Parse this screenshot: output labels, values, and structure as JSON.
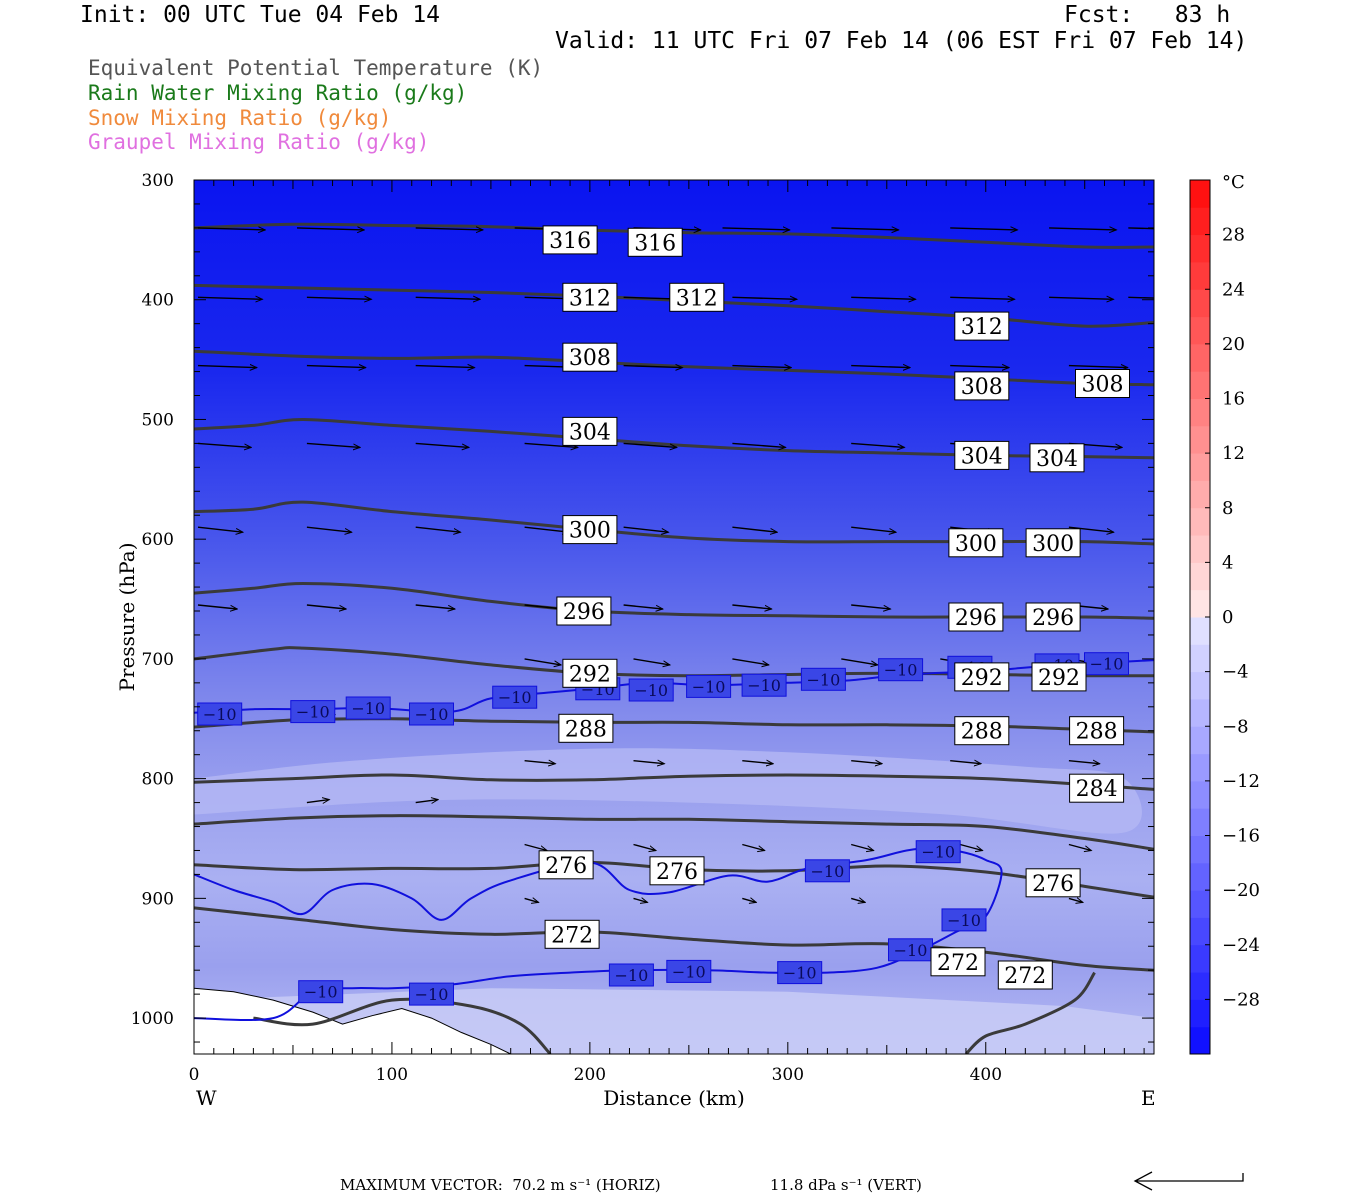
{
  "header": {
    "init": "Init: 00 UTC Tue 04 Feb 14",
    "fcst": "Fcst:   83 h",
    "valid": "Valid: 11 UTC Fri 07 Feb 14 (06 EST Fri 07 Feb 14)"
  },
  "fields": [
    {
      "label": "Equivalent Potential Temperature (K)",
      "color": "#555555"
    },
    {
      "label": "Rain Water Mixing Ratio (g/kg)",
      "color": "#1a7a1a"
    },
    {
      "label": "Snow Mixing Ratio (g/kg)",
      "color": "#f08a3c"
    },
    {
      "label": "Graupel Mixing Ratio (g/kg)",
      "color": "#e070e0"
    }
  ],
  "chart_data": {
    "type": "cross-section",
    "xlabel": "Distance (km)",
    "ylabel": "Pressure (hPa)",
    "xlim": [
      0,
      485
    ],
    "ylim": [
      300,
      1030
    ],
    "x_ticks": [
      0,
      100,
      200,
      300,
      400
    ],
    "y_ticks": [
      300,
      400,
      500,
      600,
      700,
      800,
      900,
      1000
    ],
    "west_label": "W",
    "east_label": "E",
    "colorbar": {
      "unit": "°C",
      "tick_labels": [
        "28",
        "24",
        "20",
        "16",
        "12",
        "8",
        "4",
        "0",
        "−4",
        "−8",
        "−12",
        "−16",
        "−20",
        "−24",
        "−28"
      ],
      "tick_values": [
        28,
        24,
        20,
        16,
        12,
        8,
        4,
        0,
        -4,
        -8,
        -12,
        -16,
        -20,
        -24,
        -28
      ],
      "range": [
        -32,
        32
      ],
      "step": 2
    },
    "theta_e_lines": [
      {
        "x": [
          0,
          50,
          100,
          150,
          200,
          250,
          300,
          350,
          400,
          450,
          485
        ],
        "p": [
          340,
          337,
          338,
          339,
          342,
          344,
          345,
          348,
          352,
          356,
          356
        ]
      },
      {
        "x": [
          0,
          50,
          100,
          150,
          200,
          250,
          300,
          350,
          400,
          450,
          485
        ],
        "p": [
          388,
          390,
          392,
          394,
          397,
          401,
          405,
          410,
          415,
          422,
          419
        ]
      },
      {
        "x": [
          0,
          50,
          100,
          150,
          200,
          250,
          300,
          350,
          400,
          450,
          485
        ],
        "p": [
          443,
          447,
          449,
          448,
          452,
          456,
          459,
          462,
          466,
          470,
          471
        ]
      },
      {
        "x": [
          0,
          30,
          55,
          100,
          150,
          200,
          250,
          300,
          350,
          400,
          450,
          485
        ],
        "p": [
          508,
          505,
          500,
          505,
          510,
          516,
          522,
          526,
          528,
          530,
          531,
          532
        ]
      },
      {
        "x": [
          0,
          30,
          55,
          100,
          150,
          200,
          250,
          300,
          350,
          400,
          450,
          485
        ],
        "p": [
          577,
          575,
          569,
          577,
          584,
          592,
          599,
          602,
          602,
          602,
          602,
          604
        ]
      },
      {
        "x": [
          0,
          30,
          55,
          100,
          150,
          200,
          250,
          300,
          350,
          400,
          450,
          485
        ],
        "p": [
          645,
          641,
          637,
          641,
          652,
          660,
          663,
          664,
          665,
          665,
          665,
          666
        ]
      },
      {
        "x": [
          0,
          40,
          55,
          100,
          150,
          200,
          250,
          300,
          350,
          400,
          450,
          485
        ],
        "p": [
          700,
          692,
          691,
          696,
          705,
          712,
          714,
          713,
          712,
          713,
          714,
          714
        ]
      },
      {
        "x": [
          0,
          50,
          100,
          150,
          200,
          250,
          300,
          350,
          400,
          450,
          485
        ],
        "p": [
          757,
          751,
          750,
          752,
          753,
          753,
          755,
          755,
          756,
          759,
          761
        ]
      },
      {
        "x": [
          0,
          50,
          100,
          150,
          200,
          250,
          300,
          350,
          400,
          450,
          485
        ],
        "p": [
          803,
          800,
          797,
          801,
          801,
          798,
          797,
          798,
          800,
          805,
          809
        ]
      },
      {
        "x": [
          0,
          50,
          100,
          150,
          200,
          250,
          300,
          350,
          400,
          450,
          485
        ],
        "p": [
          838,
          833,
          831,
          832,
          834,
          834,
          836,
          838,
          840,
          850,
          859
        ]
      },
      {
        "x": [
          0,
          50,
          100,
          150,
          200,
          250,
          300,
          350,
          400,
          450,
          485
        ],
        "p": [
          872,
          876,
          875,
          875,
          870,
          876,
          877,
          873,
          878,
          890,
          899
        ]
      },
      {
        "x": [
          0,
          50,
          100,
          150,
          200,
          250,
          300,
          350,
          400,
          450,
          485
        ],
        "p": [
          908,
          917,
          926,
          930,
          928,
          934,
          939,
          938,
          945,
          956,
          960
        ]
      }
    ],
    "theta_e_labels": [
      {
        "text": "316",
        "x": 190,
        "p": 350
      },
      {
        "text": "316",
        "x": 233,
        "p": 352
      },
      {
        "text": "312",
        "x": 200,
        "p": 398
      },
      {
        "text": "312",
        "x": 254,
        "p": 398
      },
      {
        "text": "312",
        "x": 398,
        "p": 422
      },
      {
        "text": "308",
        "x": 200,
        "p": 448
      },
      {
        "text": "308",
        "x": 398,
        "p": 472
      },
      {
        "text": "308",
        "x": 459,
        "p": 470
      },
      {
        "text": "304",
        "x": 200,
        "p": 510
      },
      {
        "text": "304",
        "x": 398,
        "p": 530
      },
      {
        "text": "304",
        "x": 436,
        "p": 532
      },
      {
        "text": "300",
        "x": 200,
        "p": 592
      },
      {
        "text": "300",
        "x": 395,
        "p": 603
      },
      {
        "text": "300",
        "x": 434,
        "p": 603
      },
      {
        "text": "296",
        "x": 197,
        "p": 660
      },
      {
        "text": "296",
        "x": 395,
        "p": 665
      },
      {
        "text": "296",
        "x": 434,
        "p": 665
      },
      {
        "text": "292",
        "x": 200,
        "p": 712
      },
      {
        "text": "292",
        "x": 398,
        "p": 715
      },
      {
        "text": "292",
        "x": 437,
        "p": 715
      },
      {
        "text": "288",
        "x": 198,
        "p": 758
      },
      {
        "text": "288",
        "x": 398,
        "p": 760
      },
      {
        "text": "288",
        "x": 456,
        "p": 760
      },
      {
        "text": "284",
        "x": 456,
        "p": 808
      },
      {
        "text": "276",
        "x": 188,
        "p": 872
      },
      {
        "text": "276",
        "x": 244,
        "p": 877
      },
      {
        "text": "276",
        "x": 434,
        "p": 887
      },
      {
        "text": "272",
        "x": 191,
        "p": 930
      },
      {
        "text": "272",
        "x": 386,
        "p": 953
      },
      {
        "text": "272",
        "x": 420,
        "p": 964
      }
    ],
    "isotherm_upper": {
      "label": "−10",
      "x": [
        0,
        30,
        60,
        90,
        130,
        150,
        180,
        200,
        230,
        260,
        300,
        330,
        360,
        400,
        430,
        485
      ],
      "p": [
        745,
        742,
        742,
        741,
        744,
        733,
        728,
        725,
        720,
        722,
        720,
        718,
        713,
        710,
        706,
        701
      ]
    },
    "isotherm_upper_labels": [
      {
        "x": 13,
        "p": 746
      },
      {
        "x": 60,
        "p": 744
      },
      {
        "x": 88,
        "p": 741
      },
      {
        "x": 120,
        "p": 746
      },
      {
        "x": 162,
        "p": 732
      },
      {
        "x": 204,
        "p": 725
      },
      {
        "x": 231,
        "p": 726
      },
      {
        "x": 260,
        "p": 723
      },
      {
        "x": 288,
        "p": 722
      },
      {
        "x": 318,
        "p": 717
      },
      {
        "x": 357,
        "p": 709
      },
      {
        "x": 392,
        "p": 707
      },
      {
        "x": 436,
        "p": 705
      },
      {
        "x": 461,
        "p": 704
      }
    ],
    "isotherm_lower": {
      "label": "−10",
      "x": [
        0,
        20,
        40,
        55,
        70,
        90,
        110,
        125,
        140,
        160,
        200,
        220,
        240,
        270,
        290,
        310,
        340,
        360,
        375,
        390,
        400,
        408,
        400,
        385,
        365,
        345,
        320,
        290,
        260,
        220,
        190,
        160,
        130,
        100,
        80,
        60,
        40,
        0
      ],
      "p": [
        880,
        893,
        903,
        913,
        893,
        888,
        900,
        918,
        900,
        885,
        870,
        893,
        895,
        881,
        886,
        875,
        868,
        860,
        858,
        862,
        868,
        878,
        915,
        928,
        945,
        958,
        962,
        962,
        960,
        960,
        962,
        965,
        972,
        975,
        975,
        978,
        1000,
        1000
      ]
    },
    "isotherm_lower_labels": [
      {
        "x": 320,
        "p": 877
      },
      {
        "x": 376,
        "p": 861
      },
      {
        "x": 389,
        "p": 918
      },
      {
        "x": 362,
        "p": 943
      },
      {
        "x": 64,
        "p": 978
      },
      {
        "x": 120,
        "p": 980
      },
      {
        "x": 221,
        "p": 964
      },
      {
        "x": 250,
        "p": 961
      },
      {
        "x": 306,
        "p": 962
      }
    ]
  },
  "footer": {
    "max_vector": "MAXIMUM VECTOR:  70.2 m s⁻¹ (HORIZ)",
    "vert": "11.8 dPa s⁻¹ (VERT)"
  }
}
